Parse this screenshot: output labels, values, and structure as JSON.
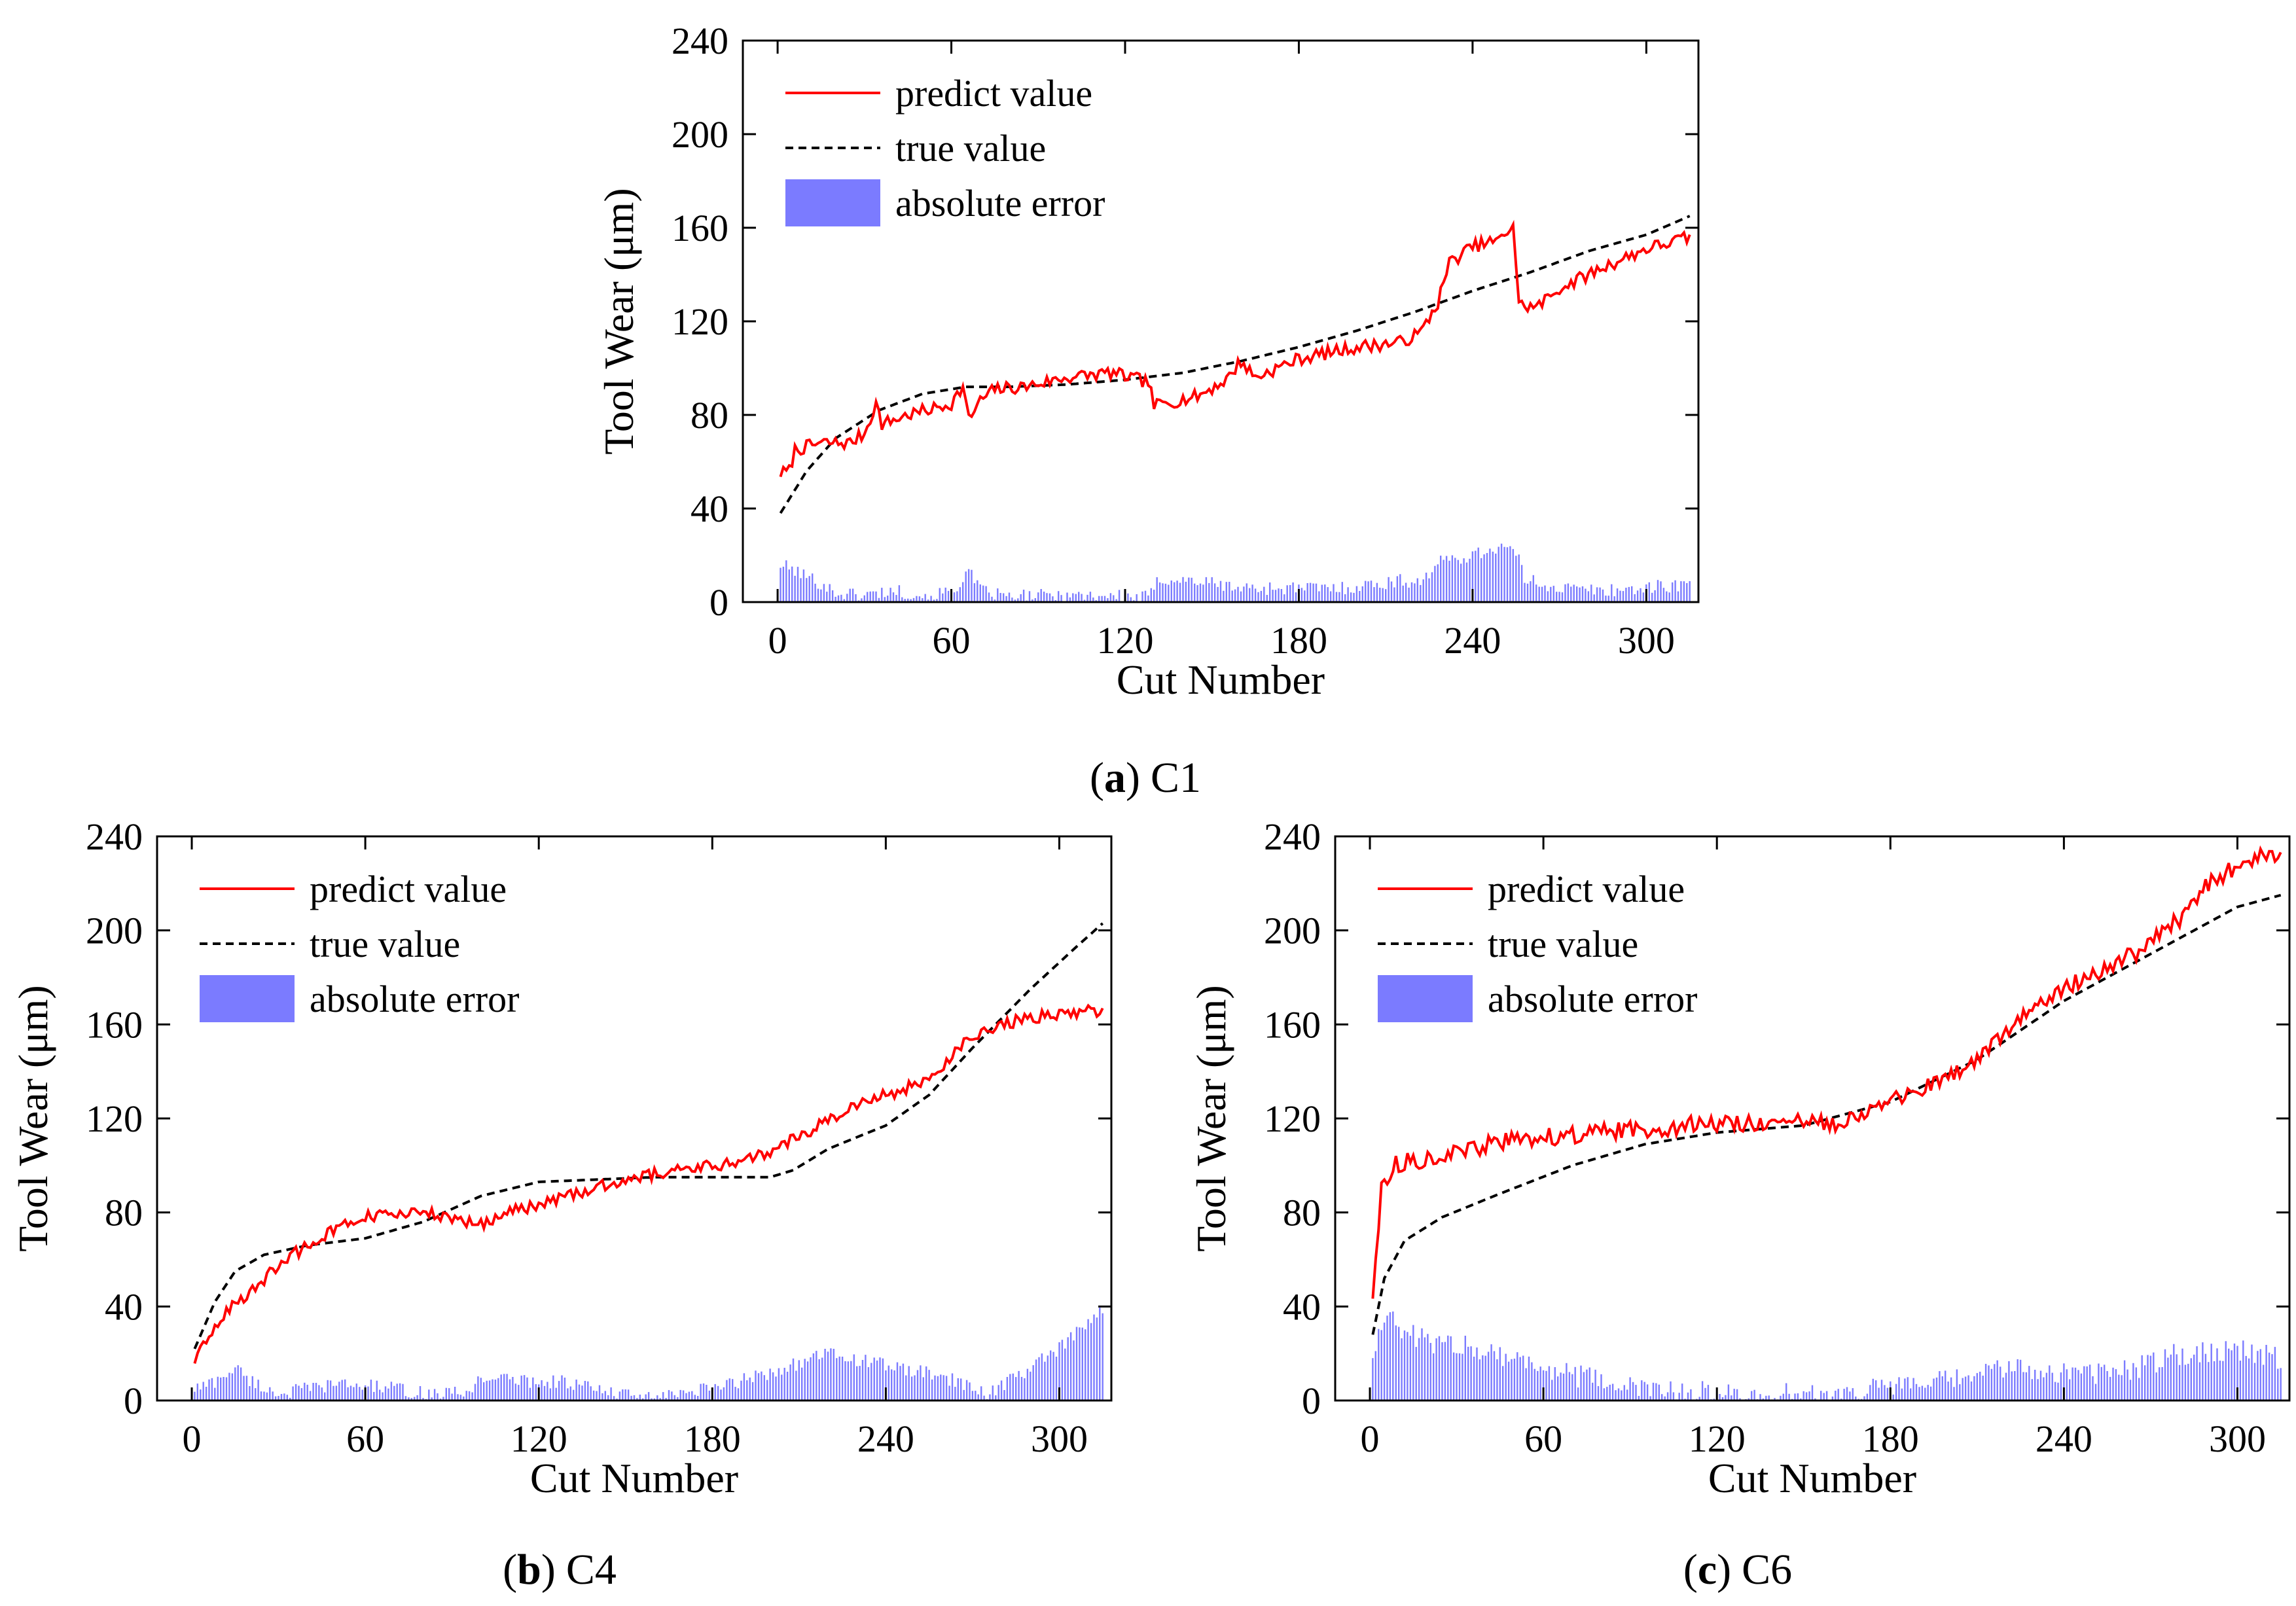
{
  "colors": {
    "predict": "#ff0000",
    "true": "#000000",
    "error_bar": "#7b7bff"
  },
  "chart_data": [
    {
      "id": "C1",
      "type": "line",
      "caption": {
        "open": "(",
        "letter": "a",
        "close": ")",
        "label": "C1"
      },
      "xlabel": "Cut Number",
      "ylabel": "Tool Wear (μm)",
      "xlim": [
        -12,
        318
      ],
      "ylim": [
        0,
        240
      ],
      "xticks": [
        0,
        60,
        120,
        180,
        240,
        300
      ],
      "yticks": [
        0,
        40,
        80,
        120,
        160,
        200,
        240
      ],
      "xtick_labels": [
        "0",
        "60",
        "120",
        "180",
        "240",
        "300"
      ],
      "ytick_labels": [
        "0",
        "40",
        "80",
        "120",
        "160",
        "200",
        "240"
      ],
      "legend": [
        "predict value",
        "true value",
        "absolute error"
      ],
      "legend_position": "top-left",
      "n_cuts": 315,
      "series": [
        {
          "name": "true value",
          "style": "dashed",
          "anchors": [
            [
              1,
              38
            ],
            [
              10,
              56
            ],
            [
              20,
              70
            ],
            [
              35,
              82
            ],
            [
              50,
              89
            ],
            [
              65,
              92
            ],
            [
              80,
              92
            ],
            [
              100,
              93
            ],
            [
              120,
              95
            ],
            [
              140,
              98
            ],
            [
              160,
              103
            ],
            [
              180,
              109
            ],
            [
              200,
              116
            ],
            [
              220,
              124
            ],
            [
              240,
              133
            ],
            [
              260,
              141
            ],
            [
              280,
              150
            ],
            [
              300,
              157
            ],
            [
              315,
              165
            ]
          ]
        },
        {
          "name": "predict value",
          "style": "solid",
          "anchors": [
            [
              1,
              55
            ],
            [
              4,
              56
            ],
            [
              6,
              65
            ],
            [
              15,
              68
            ],
            [
              25,
              68
            ],
            [
              30,
              72
            ],
            [
              34,
              85
            ],
            [
              36,
              76
            ],
            [
              45,
              80
            ],
            [
              55,
              83
            ],
            [
              60,
              85
            ],
            [
              64,
              92
            ],
            [
              66,
              78
            ],
            [
              70,
              86
            ],
            [
              75,
              91
            ],
            [
              85,
              92
            ],
            [
              100,
              96
            ],
            [
              115,
              98
            ],
            [
              128,
              94
            ],
            [
              130,
              84
            ],
            [
              145,
              88
            ],
            [
              155,
              95
            ],
            [
              160,
              103
            ],
            [
              165,
              96
            ],
            [
              180,
              104
            ],
            [
              200,
              109
            ],
            [
              215,
              111
            ],
            [
              222,
              115
            ],
            [
              228,
              128
            ],
            [
              232,
              145
            ],
            [
              240,
              152
            ],
            [
              250,
              155
            ],
            [
              254,
              162
            ],
            [
              256,
              127
            ],
            [
              262,
              126
            ],
            [
              270,
              134
            ],
            [
              285,
              143
            ],
            [
              300,
              151
            ],
            [
              315,
              156
            ]
          ],
          "noise": 2.8
        },
        {
          "name": "absolute error",
          "type": "bar",
          "anchors": [
            [
              1,
              16
            ],
            [
              5,
              14
            ],
            [
              10,
              11
            ],
            [
              15,
              8
            ],
            [
              20,
              4
            ],
            [
              30,
              3
            ],
            [
              40,
              5
            ],
            [
              50,
              3
            ],
            [
              60,
              4
            ],
            [
              66,
              13
            ],
            [
              70,
              5
            ],
            [
              80,
              2
            ],
            [
              95,
              3
            ],
            [
              110,
              3
            ],
            [
              128,
              2
            ],
            [
              132,
              10
            ],
            [
              145,
              9
            ],
            [
              160,
              6
            ],
            [
              175,
              6
            ],
            [
              195,
              6
            ],
            [
              215,
              9
            ],
            [
              222,
              9
            ],
            [
              230,
              18
            ],
            [
              240,
              20
            ],
            [
              250,
              24
            ],
            [
              255,
              21
            ],
            [
              258,
              10
            ],
            [
              270,
              6
            ],
            [
              285,
              5
            ],
            [
              300,
              6
            ],
            [
              315,
              8
            ]
          ],
          "noise": 3
        }
      ]
    },
    {
      "id": "C4",
      "type": "line",
      "caption": {
        "open": "(",
        "letter": "b",
        "close": ")",
        "label": "C4"
      },
      "xlabel": "Cut Number",
      "ylabel": "Tool Wear (μm)",
      "xlim": [
        -12,
        318
      ],
      "ylim": [
        0,
        240
      ],
      "xticks": [
        0,
        60,
        120,
        180,
        240,
        300
      ],
      "yticks": [
        0,
        40,
        80,
        120,
        160,
        200,
        240
      ],
      "xtick_labels": [
        "0",
        "60",
        "120",
        "180",
        "240",
        "300"
      ],
      "ytick_labels": [
        "0",
        "40",
        "80",
        "120",
        "160",
        "200",
        "240"
      ],
      "legend": [
        "predict value",
        "true value",
        "absolute error"
      ],
      "legend_position": "top-left",
      "n_cuts": 315,
      "series": [
        {
          "name": "true value",
          "style": "dashed",
          "anchors": [
            [
              1,
              22
            ],
            [
              8,
              42
            ],
            [
              15,
              55
            ],
            [
              25,
              62
            ],
            [
              40,
              66
            ],
            [
              60,
              69
            ],
            [
              80,
              76
            ],
            [
              100,
              87
            ],
            [
              120,
              93
            ],
            [
              140,
              94
            ],
            [
              160,
              95
            ],
            [
              180,
              95
            ],
            [
              200,
              95
            ],
            [
              208,
              98
            ],
            [
              220,
              107
            ],
            [
              240,
              117
            ],
            [
              255,
              130
            ],
            [
              270,
              150
            ],
            [
              290,
              175
            ],
            [
              305,
              192
            ],
            [
              315,
              203
            ]
          ]
        },
        {
          "name": "predict value",
          "style": "solid",
          "anchors": [
            [
              1,
              17
            ],
            [
              5,
              25
            ],
            [
              10,
              36
            ],
            [
              20,
              45
            ],
            [
              30,
              58
            ],
            [
              40,
              66
            ],
            [
              50,
              73
            ],
            [
              60,
              78
            ],
            [
              80,
              80
            ],
            [
              100,
              75
            ],
            [
              110,
              80
            ],
            [
              130,
              87
            ],
            [
              150,
              94
            ],
            [
              170,
              99
            ],
            [
              190,
              101
            ],
            [
              205,
              109
            ],
            [
              220,
              119
            ],
            [
              230,
              126
            ],
            [
              250,
              134
            ],
            [
              260,
              141
            ],
            [
              265,
              150
            ],
            [
              275,
              158
            ],
            [
              290,
              163
            ],
            [
              305,
              165
            ],
            [
              315,
              166
            ]
          ],
          "noise": 2.6
        },
        {
          "name": "absolute error",
          "type": "bar",
          "anchors": [
            [
              1,
              5
            ],
            [
              8,
              8
            ],
            [
              15,
              14
            ],
            [
              22,
              7
            ],
            [
              30,
              3
            ],
            [
              50,
              7
            ],
            [
              65,
              6
            ],
            [
              80,
              3
            ],
            [
              95,
              3
            ],
            [
              100,
              10
            ],
            [
              120,
              8
            ],
            [
              130,
              8
            ],
            [
              145,
              3
            ],
            [
              160,
              1
            ],
            [
              180,
              5
            ],
            [
              200,
              12
            ],
            [
              220,
              20
            ],
            [
              240,
              15
            ],
            [
              260,
              10
            ],
            [
              275,
              3
            ],
            [
              285,
              10
            ],
            [
              300,
              22
            ],
            [
              315,
              38
            ]
          ],
          "noise": 3
        }
      ]
    },
    {
      "id": "C6",
      "type": "line",
      "caption": {
        "open": "(",
        "letter": "c",
        "close": ")",
        "label": "C6"
      },
      "xlabel": "Cut Number",
      "ylabel": "Tool Wear (μm)",
      "xlim": [
        -12,
        318
      ],
      "ylim": [
        0,
        240
      ],
      "xticks": [
        0,
        60,
        120,
        180,
        240,
        300
      ],
      "yticks": [
        0,
        40,
        80,
        120,
        160,
        200,
        240
      ],
      "xtick_labels": [
        "0",
        "60",
        "120",
        "180",
        "240",
        "300"
      ],
      "ytick_labels": [
        "0",
        "40",
        "80",
        "120",
        "160",
        "200",
        "240"
      ],
      "legend": [
        "predict value",
        "true value",
        "absolute error"
      ],
      "legend_position": "top-left",
      "n_cuts": 315,
      "series": [
        {
          "name": "true value",
          "style": "dashed",
          "anchors": [
            [
              1,
              28
            ],
            [
              5,
              52
            ],
            [
              12,
              68
            ],
            [
              25,
              78
            ],
            [
              45,
              88
            ],
            [
              70,
              100
            ],
            [
              95,
              109
            ],
            [
              120,
              114
            ],
            [
              150,
              117
            ],
            [
              180,
              127
            ],
            [
              210,
              145
            ],
            [
              240,
              170
            ],
            [
              270,
              190
            ],
            [
              300,
              210
            ],
            [
              315,
              215
            ]
          ]
        },
        {
          "name": "predict value",
          "style": "solid",
          "anchors": [
            [
              1,
              45
            ],
            [
              4,
              90
            ],
            [
              8,
              100
            ],
            [
              15,
              102
            ],
            [
              30,
              105
            ],
            [
              45,
              110
            ],
            [
              60,
              112
            ],
            [
              80,
              114
            ],
            [
              100,
              116
            ],
            [
              120,
              118
            ],
            [
              140,
              118
            ],
            [
              160,
              118
            ],
            [
              180,
              127
            ],
            [
              200,
              137
            ],
            [
              210,
              145
            ],
            [
              220,
              157
            ],
            [
              235,
              172
            ],
            [
              250,
              182
            ],
            [
              265,
              190
            ],
            [
              280,
              205
            ],
            [
              290,
              220
            ],
            [
              300,
              227
            ],
            [
              310,
              233
            ],
            [
              315,
              232
            ]
          ],
          "noise": 3.8
        },
        {
          "name": "absolute error",
          "type": "bar",
          "anchors": [
            [
              1,
              20
            ],
            [
              5,
              38
            ],
            [
              10,
              30
            ],
            [
              20,
              25
            ],
            [
              40,
              22
            ],
            [
              60,
              14
            ],
            [
              80,
              8
            ],
            [
              100,
              4
            ],
            [
              120,
              3
            ],
            [
              140,
              3
            ],
            [
              160,
              3
            ],
            [
              180,
              6
            ],
            [
              200,
              8
            ],
            [
              220,
              14
            ],
            [
              240,
              12
            ],
            [
              260,
              12
            ],
            [
              280,
              20
            ],
            [
              300,
              22
            ],
            [
              315,
              18
            ]
          ],
          "noise": 5
        }
      ]
    }
  ]
}
